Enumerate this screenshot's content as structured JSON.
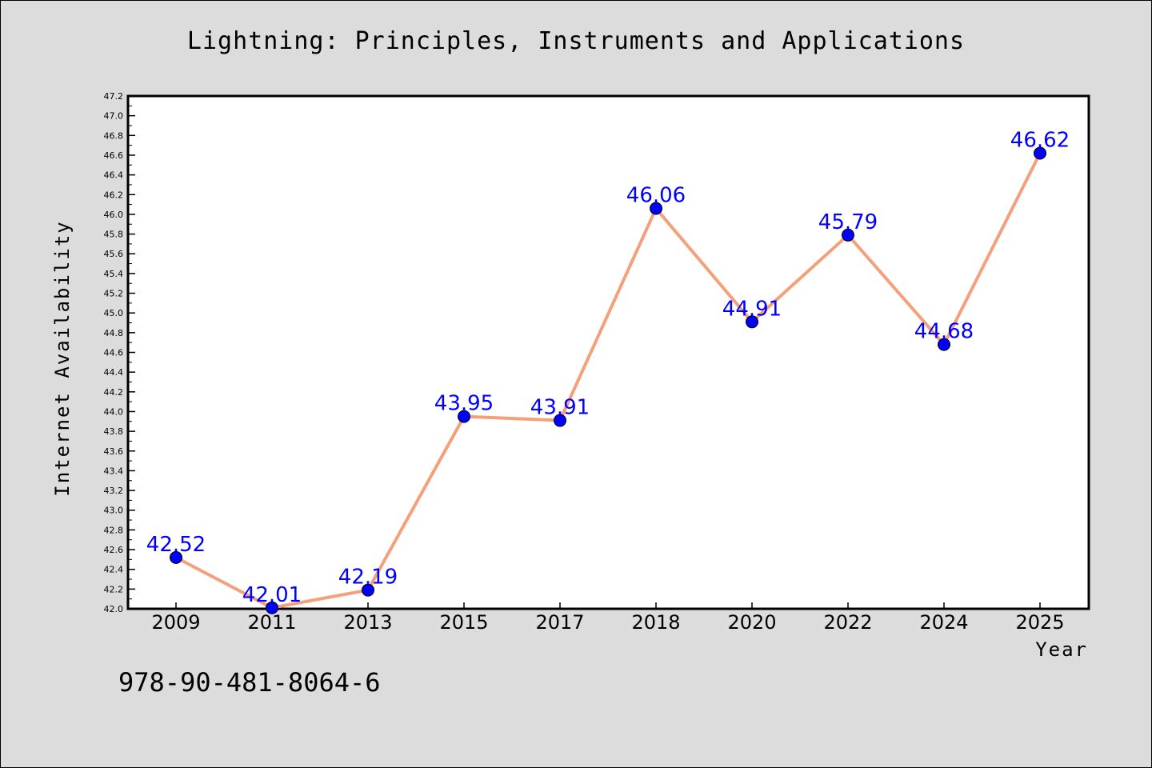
{
  "page": {
    "title": "Lightning: Principles, Instruments and Applications",
    "isbn": "978-90-481-8064-6"
  },
  "colors": {
    "background": "#dcdcdc",
    "plot_background": "#ffffff",
    "line": "#f4a07a",
    "marker": "#0000ff",
    "data_label": "#0000ff"
  },
  "chart_data": {
    "type": "line",
    "title": "Lightning: Principles, Instruments and Applications",
    "xlabel": "Year",
    "ylabel": "Internet Availability",
    "categories": [
      "2009",
      "2011",
      "2013",
      "2015",
      "2017",
      "2018",
      "2020",
      "2022",
      "2024",
      "2025"
    ],
    "series": [
      {
        "values": [
          42.52,
          42.01,
          42.19,
          43.95,
          43.91,
          46.06,
          44.91,
          45.79,
          44.68,
          46.62
        ],
        "labels": [
          "42.52",
          "42.01",
          "42.19",
          "43.95",
          "43.91",
          "46.06",
          "44.91",
          "45.79",
          "44.68",
          "46.62"
        ]
      }
    ],
    "ylim": [
      42.0,
      47.2
    ],
    "yticks": [
      "42.0",
      "42.2",
      "42.4",
      "42.6",
      "42.8",
      "43.0",
      "43.2",
      "43.4",
      "43.6",
      "43.8",
      "44.0",
      "44.2",
      "44.4",
      "44.6",
      "44.8",
      "45.0",
      "45.2",
      "45.4",
      "45.6",
      "45.8",
      "46.0",
      "46.2",
      "46.4",
      "46.6",
      "46.8",
      "47.0",
      "47.2"
    ],
    "grid": false,
    "legend": "none",
    "markers": "circle"
  }
}
